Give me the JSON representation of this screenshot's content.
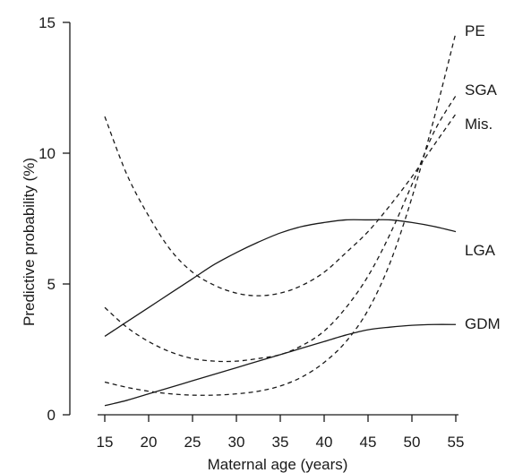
{
  "chart_data": {
    "type": "line",
    "xlabel": "Maternal age (years)",
    "ylabel": "Predictive probability (%)",
    "xlim": [
      15,
      55
    ],
    "ylim": [
      0,
      15
    ],
    "x_ticks": [
      "15",
      "20",
      "25",
      "30",
      "35",
      "40",
      "45",
      "50",
      "55"
    ],
    "y_ticks": [
      "0",
      "5",
      "10",
      "15"
    ],
    "grid": false,
    "legend": "inline labels at right end of curves",
    "x": [
      15,
      17.5,
      20,
      22.5,
      25,
      27.5,
      30,
      32.5,
      35,
      37.5,
      40,
      42.5,
      45,
      47.5,
      50,
      52.5,
      55
    ],
    "series": [
      {
        "name": "PE",
        "style": "dashed",
        "values": [
          1.25,
          1.05,
          0.9,
          0.8,
          0.75,
          0.75,
          0.8,
          0.9,
          1.1,
          1.45,
          2.0,
          2.8,
          4.0,
          5.8,
          8.3,
          11.3,
          14.6
        ]
      },
      {
        "name": "SGA",
        "style": "dashed",
        "values": [
          4.1,
          3.35,
          2.8,
          2.4,
          2.15,
          2.05,
          2.05,
          2.15,
          2.3,
          2.65,
          3.2,
          4.1,
          5.3,
          6.9,
          8.8,
          10.8,
          12.2
        ]
      },
      {
        "name": "Mis.",
        "style": "dashed",
        "values": [
          11.4,
          9.2,
          7.6,
          6.3,
          5.45,
          4.95,
          4.65,
          4.55,
          4.65,
          4.95,
          5.45,
          6.2,
          7.0,
          8.0,
          9.1,
          10.3,
          11.5
        ]
      },
      {
        "name": "LGA",
        "style": "solid",
        "values": [
          3.0,
          3.55,
          4.1,
          4.65,
          5.2,
          5.75,
          6.2,
          6.6,
          6.95,
          7.2,
          7.35,
          7.45,
          7.45,
          7.45,
          7.35,
          7.2,
          7.0
        ]
      },
      {
        "name": "GDM",
        "style": "solid",
        "values": [
          0.35,
          0.55,
          0.8,
          1.05,
          1.3,
          1.55,
          1.8,
          2.05,
          2.3,
          2.55,
          2.8,
          3.05,
          3.25,
          3.35,
          3.42,
          3.45,
          3.45
        ]
      }
    ]
  }
}
